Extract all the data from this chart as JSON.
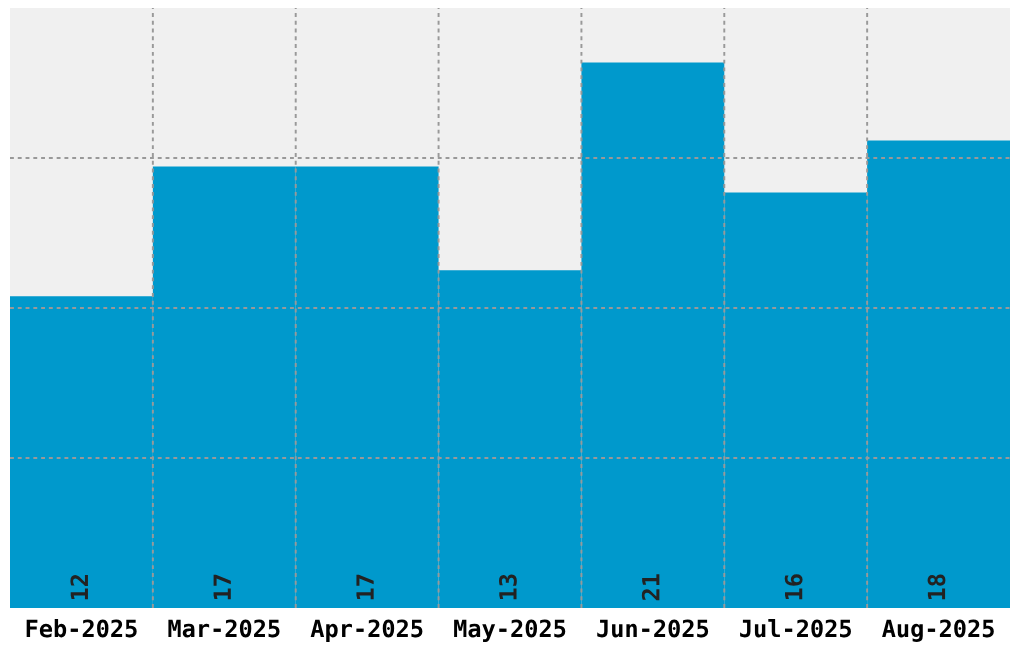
{
  "chart_data": {
    "type": "bar",
    "categories": [
      "Feb-2025",
      "Mar-2025",
      "Apr-2025",
      "May-2025",
      "Jun-2025",
      "Jul-2025",
      "Aug-2025"
    ],
    "values": [
      12,
      17,
      17,
      13,
      21,
      16,
      18
    ],
    "color": "#0099cc",
    "ylim": [
      0,
      23.1
    ],
    "yticks": [
      {
        "value": 5.775,
        "label": null
      },
      {
        "value": 11.55,
        "label": null
      },
      {
        "value": 17.325,
        "label": null
      }
    ],
    "tick_labels": "x",
    "grid": true,
    "data_labels": true
  }
}
